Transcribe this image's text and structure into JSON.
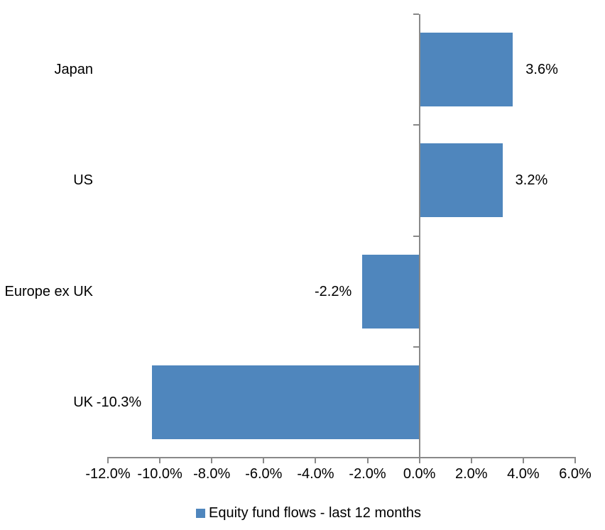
{
  "chart_data": {
    "type": "bar",
    "orientation": "horizontal",
    "categories": [
      "Japan",
      "US",
      "Europe ex UK",
      "UK"
    ],
    "values": [
      3.6,
      3.2,
      -2.2,
      -10.3
    ],
    "value_labels": [
      "3.6%",
      "3.2%",
      "-2.2%",
      "-10.3%"
    ],
    "xlim": [
      -12,
      6
    ],
    "x_ticks": [
      -12,
      -10,
      -8,
      -6,
      -4,
      -2,
      0,
      2,
      4,
      6
    ],
    "x_tick_labels": [
      "-12.0%",
      "-10.0%",
      "-8.0%",
      "-6.0%",
      "-4.0%",
      "-2.0%",
      "0.0%",
      "2.0%",
      "4.0%",
      "6.0%"
    ],
    "grid": false,
    "legend_position": "bottom",
    "legend": [
      {
        "label": "Equity fund flows - last 12 months",
        "color": "#4F86BD",
        "marker": "legend-square-icon"
      }
    ],
    "colors": {
      "bar": "#4F86BD",
      "axis": "#898989",
      "text": "#000000",
      "background": "#FFFFFF"
    }
  }
}
